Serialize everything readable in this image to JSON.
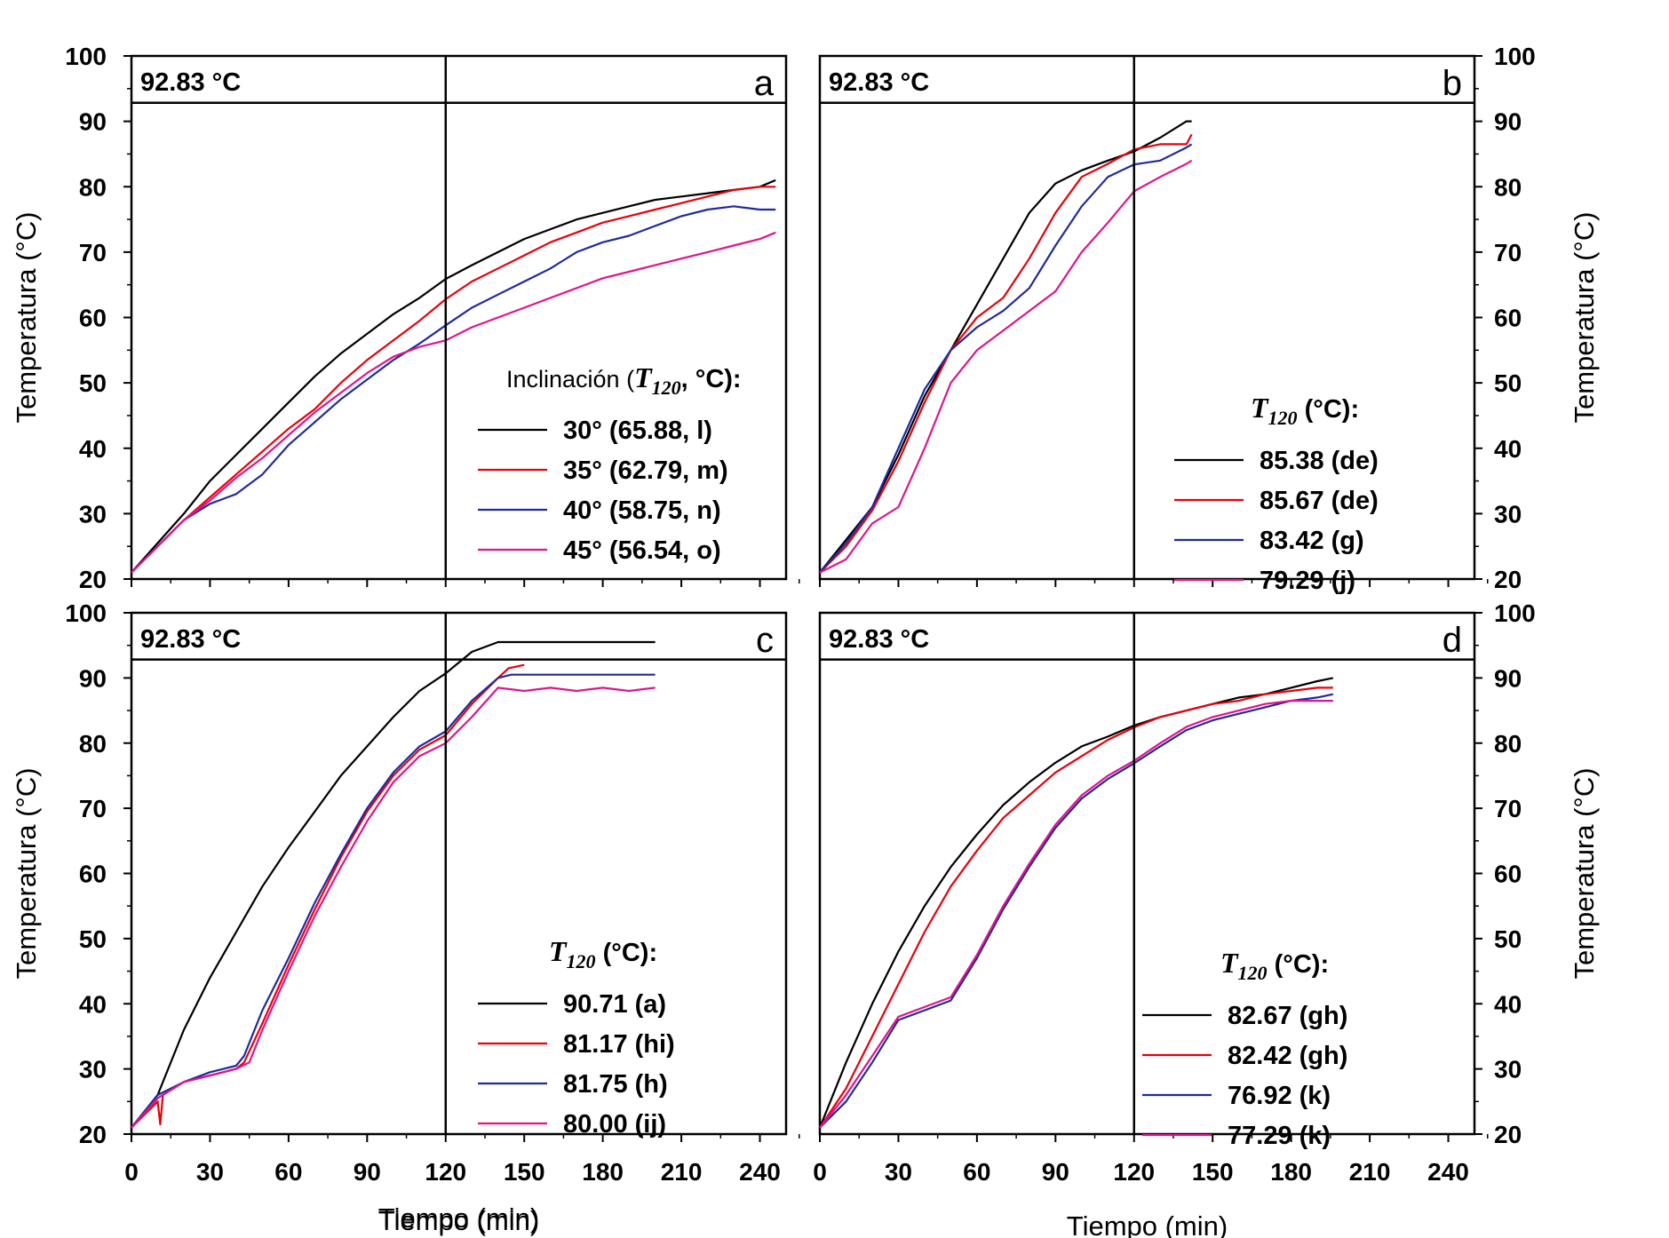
{
  "figure": {
    "xlabel": "Tiempo (min)",
    "ylabel": "Temperatura (°C)",
    "ref_label": "92.83 °C"
  },
  "colors": {
    "black": "#000000",
    "red": "#e8000b",
    "blue": "#1f2a9e",
    "magenta": "#e0148c"
  },
  "chart_data": [
    {
      "type": "line",
      "panel": "a",
      "xlabel": "Tiempo (min)",
      "ylabel": "Temperatura (°C)",
      "xlim": [
        0,
        250
      ],
      "ylim": [
        20,
        100
      ],
      "xticks": [
        0,
        30,
        60,
        90,
        120,
        150,
        180,
        210,
        240
      ],
      "yticks": [
        20,
        30,
        40,
        50,
        60,
        70,
        80,
        90,
        100
      ],
      "ref_line_y": 92.83,
      "ref_label": "92.83 °C",
      "vline_x": 120,
      "legend_title_pre": "Inclinación",
      "legend_title_var": "T",
      "legend_title_sub": "120",
      "legend_title_post": ", °C):",
      "legend_position": "lower-right",
      "series": [
        {
          "name": "30° (65.88, l)",
          "color": "black",
          "x": [
            0,
            10,
            20,
            30,
            40,
            50,
            60,
            70,
            80,
            90,
            100,
            110,
            120,
            130,
            140,
            150,
            160,
            170,
            180,
            190,
            200,
            210,
            220,
            230,
            240,
            246
          ],
          "y": [
            21,
            25.5,
            30,
            35,
            39,
            43,
            47,
            51,
            54.5,
            57.5,
            60.5,
            63,
            65.9,
            68,
            70,
            72,
            73.5,
            75,
            76,
            77,
            78,
            78.5,
            79,
            79.5,
            80,
            81
          ]
        },
        {
          "name": "35° (62.79, m)",
          "color": "red",
          "x": [
            0,
            10,
            20,
            30,
            40,
            50,
            60,
            70,
            80,
            90,
            100,
            110,
            120,
            130,
            140,
            150,
            160,
            170,
            180,
            190,
            200,
            210,
            220,
            230,
            240,
            246
          ],
          "y": [
            21,
            25,
            29,
            32.5,
            36,
            39.5,
            43,
            46,
            50,
            53.5,
            56.5,
            59.5,
            62.8,
            65.5,
            67.5,
            69.5,
            71.5,
            73,
            74.5,
            75.5,
            76.5,
            77.5,
            78.5,
            79.5,
            80,
            80
          ]
        },
        {
          "name": "40° (58.75, n)",
          "color": "blue",
          "x": [
            0,
            10,
            20,
            30,
            40,
            50,
            60,
            70,
            80,
            90,
            100,
            110,
            120,
            130,
            140,
            150,
            160,
            170,
            180,
            190,
            200,
            210,
            220,
            230,
            240,
            246
          ],
          "y": [
            21,
            25,
            29,
            31.5,
            33,
            36,
            40.5,
            44,
            47.5,
            50.5,
            53.5,
            56,
            58.8,
            61.5,
            63.5,
            65.5,
            67.5,
            70,
            71.5,
            72.5,
            74,
            75.5,
            76.5,
            77,
            76.5,
            76.5
          ]
        },
        {
          "name": "45° (56.54, o)",
          "color": "magenta",
          "x": [
            0,
            10,
            20,
            30,
            40,
            50,
            60,
            70,
            80,
            90,
            100,
            110,
            120,
            130,
            140,
            150,
            160,
            170,
            180,
            190,
            200,
            210,
            220,
            230,
            240,
            246
          ],
          "y": [
            21,
            25,
            29,
            32,
            35.5,
            38.5,
            42,
            45.5,
            48.5,
            51.5,
            54,
            55.5,
            56.5,
            58.5,
            60,
            61.5,
            63,
            64.5,
            66,
            67,
            68,
            69,
            70,
            71,
            72,
            73
          ]
        }
      ]
    },
    {
      "type": "line",
      "panel": "b",
      "xlabel": "",
      "ylabel": "Temperatura (°C)",
      "xlim": [
        0,
        250
      ],
      "ylim": [
        20,
        100
      ],
      "xticks": [
        0,
        30,
        60,
        90,
        120,
        150,
        180,
        210,
        240
      ],
      "yticks": [
        20,
        30,
        40,
        50,
        60,
        70,
        80,
        90,
        100
      ],
      "ref_line_y": 92.83,
      "ref_label": "92.83 °C",
      "vline_x": 120,
      "legend_title_pre": "",
      "legend_title_var": "T",
      "legend_title_sub": "120",
      "legend_title_post": " (°C):",
      "legend_position": "center-right",
      "series": [
        {
          "name": "85.38 (de)",
          "color": "black",
          "x": [
            0,
            10,
            20,
            30,
            40,
            50,
            60,
            70,
            80,
            90,
            100,
            110,
            120,
            130,
            140,
            142
          ],
          "y": [
            21,
            26,
            31,
            39,
            48,
            55,
            62,
            69,
            76,
            80.5,
            82.5,
            84,
            85.4,
            87.5,
            90,
            90
          ]
        },
        {
          "name": "85.67 (de)",
          "color": "red",
          "x": [
            0,
            10,
            20,
            30,
            40,
            50,
            60,
            70,
            80,
            90,
            100,
            110,
            120,
            130,
            140,
            142
          ],
          "y": [
            21,
            25,
            30.5,
            38,
            47,
            55,
            60,
            63,
            69,
            76,
            81.5,
            83.5,
            85.7,
            86.5,
            86.5,
            88
          ]
        },
        {
          "name": "83.42 (g)",
          "color": "blue",
          "x": [
            0,
            10,
            20,
            30,
            40,
            50,
            60,
            70,
            80,
            90,
            100,
            110,
            120,
            130,
            140,
            142
          ],
          "y": [
            21,
            25.5,
            31,
            40,
            49,
            55,
            58.5,
            61,
            64.5,
            71,
            77,
            81.5,
            83.4,
            84,
            86,
            86.5
          ]
        },
        {
          "name": "79.29 (j)",
          "color": "magenta",
          "x": [
            0,
            10,
            20,
            30,
            40,
            50,
            60,
            70,
            80,
            90,
            100,
            110,
            120,
            130,
            140,
            142
          ],
          "y": [
            21,
            23,
            28.5,
            31,
            40,
            50,
            55,
            58,
            61,
            64,
            70,
            74.5,
            79.3,
            81.5,
            83.5,
            84
          ]
        }
      ]
    },
    {
      "type": "line",
      "panel": "c",
      "xlabel": "Tiempo (min)",
      "ylabel": "Temperatura (°C)",
      "xlim": [
        0,
        250
      ],
      "ylim": [
        20,
        100
      ],
      "xticks": [
        0,
        30,
        60,
        90,
        120,
        150,
        180,
        210,
        240
      ],
      "yticks": [
        20,
        30,
        40,
        50,
        60,
        70,
        80,
        90,
        100
      ],
      "ref_line_y": 92.83,
      "ref_label": "92.83 °C",
      "vline_x": 120,
      "legend_title_pre": "",
      "legend_title_var": "T",
      "legend_title_sub": "120",
      "legend_title_post": " (°C):",
      "legend_position": "lower-right",
      "series": [
        {
          "name": "90.71 (a)",
          "color": "black",
          "x": [
            0,
            10,
            20,
            30,
            40,
            50,
            60,
            70,
            80,
            90,
            100,
            110,
            120,
            130,
            140,
            150,
            160,
            170,
            180,
            190,
            200
          ],
          "y": [
            21,
            26,
            36,
            44,
            51,
            58,
            64,
            69.5,
            75,
            79.5,
            84,
            88,
            90.7,
            94,
            95.5,
            95.5,
            95.5,
            95.5,
            95.5,
            95.5,
            95.5
          ]
        },
        {
          "name": "81.17 (hi)",
          "color": "red",
          "x": [
            0,
            10,
            11,
            12,
            20,
            30,
            40,
            43,
            50,
            60,
            70,
            80,
            90,
            100,
            110,
            120,
            130,
            140,
            144,
            150
          ],
          "y": [
            21,
            25,
            21.5,
            26,
            28,
            29,
            30,
            31,
            37,
            46,
            54.5,
            62.5,
            69.5,
            75,
            79,
            81.2,
            86,
            90,
            91.5,
            92
          ]
        },
        {
          "name": "81.75 (h)",
          "color": "blue",
          "x": [
            0,
            10,
            20,
            30,
            40,
            43,
            50,
            60,
            70,
            80,
            90,
            100,
            110,
            120,
            130,
            140,
            145,
            150,
            160,
            170,
            180,
            190,
            200
          ],
          "y": [
            21,
            26,
            28,
            29.5,
            30.5,
            32,
            39,
            47,
            55.5,
            63,
            70,
            75.5,
            79.5,
            81.8,
            86.5,
            90,
            90.5,
            90.5,
            90.5,
            90.5,
            90.5,
            90.5,
            90.5
          ]
        },
        {
          "name": "80.00 (ij)",
          "color": "magenta",
          "x": [
            0,
            10,
            20,
            30,
            40,
            45,
            50,
            60,
            70,
            80,
            90,
            100,
            110,
            120,
            130,
            140,
            150,
            160,
            170,
            180,
            190,
            200
          ],
          "y": [
            21,
            25.5,
            28,
            29,
            30,
            31,
            36,
            45,
            53.5,
            61,
            68,
            74,
            78,
            80,
            84,
            88.5,
            88,
            88.5,
            88,
            88.5,
            88,
            88.5
          ]
        }
      ]
    },
    {
      "type": "line",
      "panel": "d",
      "xlabel": "Tiempo (min)",
      "ylabel": "Temperatura (°C)",
      "xlim": [
        0,
        250
      ],
      "ylim": [
        20,
        100
      ],
      "xticks": [
        0,
        30,
        60,
        90,
        120,
        150,
        180,
        210,
        240
      ],
      "yticks": [
        20,
        30,
        40,
        50,
        60,
        70,
        80,
        90,
        100
      ],
      "ref_line_y": 92.83,
      "ref_label": "92.83 °C",
      "vline_x": 120,
      "legend_title_pre": "",
      "legend_title_var": "T",
      "legend_title_sub": "120",
      "legend_title_post": " (°C):",
      "legend_position": "lower-right",
      "series": [
        {
          "name": "82.67 (gh)",
          "color": "black",
          "x": [
            0,
            10,
            20,
            30,
            40,
            50,
            60,
            70,
            80,
            90,
            100,
            110,
            120,
            130,
            140,
            150,
            160,
            170,
            180,
            190,
            196
          ],
          "y": [
            21,
            31,
            40,
            48,
            55,
            61,
            66,
            70.5,
            74,
            77,
            79.5,
            81,
            82.7,
            84,
            85,
            86,
            87,
            87.5,
            88.5,
            89.5,
            90
          ]
        },
        {
          "name": "82.42 (gh)",
          "color": "red",
          "x": [
            0,
            10,
            20,
            30,
            40,
            50,
            60,
            70,
            80,
            90,
            100,
            110,
            120,
            130,
            140,
            150,
            160,
            170,
            180,
            190,
            196
          ],
          "y": [
            21,
            27,
            35,
            43,
            51,
            58,
            63.5,
            68.5,
            72,
            75.5,
            78,
            80.5,
            82.4,
            84,
            85,
            86,
            86.5,
            87.5,
            88,
            88.5,
            88.5
          ]
        },
        {
          "name": "76.92 (k)",
          "color": "blue",
          "x": [
            0,
            10,
            20,
            30,
            40,
            50,
            60,
            70,
            80,
            90,
            100,
            110,
            120,
            130,
            140,
            150,
            160,
            170,
            180,
            190,
            196
          ],
          "y": [
            21,
            25,
            31,
            37.5,
            39,
            40.5,
            47,
            54.5,
            61,
            67,
            71.5,
            74.5,
            76.9,
            79.5,
            82,
            83.5,
            84.5,
            85.5,
            86.5,
            87,
            87.5
          ]
        },
        {
          "name": "77.29 (k)",
          "color": "magenta",
          "x": [
            0,
            10,
            20,
            30,
            40,
            50,
            60,
            70,
            80,
            90,
            100,
            110,
            120,
            130,
            140,
            150,
            160,
            170,
            180,
            190,
            196
          ],
          "y": [
            21,
            26,
            32,
            38,
            39.5,
            41,
            47.5,
            55,
            61.5,
            67.5,
            72,
            75,
            77.3,
            80,
            82.5,
            84,
            85,
            86,
            86.5,
            86.5,
            86.5
          ]
        }
      ]
    }
  ]
}
